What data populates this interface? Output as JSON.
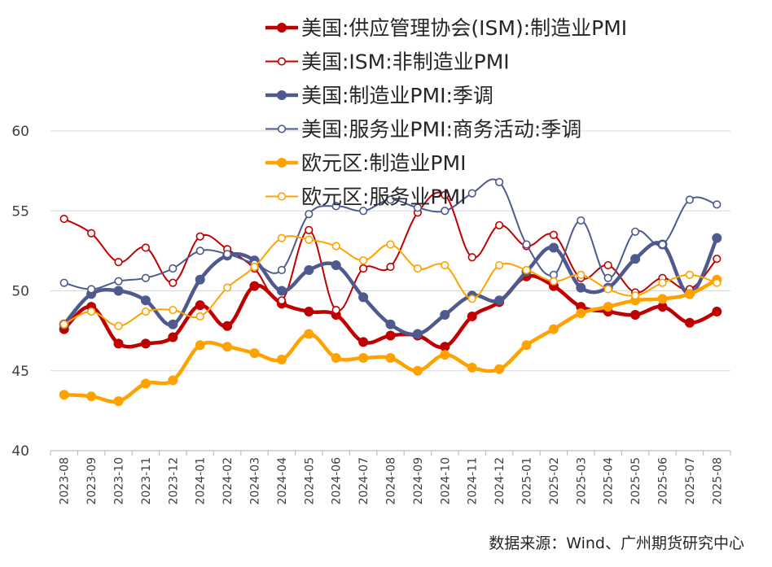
{
  "chart_data": {
    "type": "line",
    "categories": [
      "2023-08",
      "2023-09",
      "2023-10",
      "2023-11",
      "2023-12",
      "2024-01",
      "2024-02",
      "2024-03",
      "2024-04",
      "2024-05",
      "2024-06",
      "2024-07",
      "2024-08",
      "2024-09",
      "2024-10",
      "2024-11",
      "2024-12",
      "2025-01",
      "2025-02",
      "2025-03",
      "2025-04",
      "2025-05",
      "2025-06",
      "2025-07",
      "2025-08"
    ],
    "ylim": [
      40,
      60
    ],
    "yticks": [
      "40",
      "45",
      "50",
      "55",
      "60"
    ],
    "grid": true,
    "legend_position": "top",
    "series": [
      {
        "name": "美国:供应管理协会(ISM):制造业PMI",
        "color": "#c00000",
        "style": "thick-filled",
        "values": [
          47.6,
          49.0,
          46.7,
          46.7,
          47.1,
          49.1,
          47.8,
          50.3,
          49.2,
          48.7,
          48.5,
          46.8,
          47.2,
          47.2,
          46.5,
          48.4,
          49.3,
          50.9,
          50.3,
          49.0,
          48.7,
          48.5,
          49.0,
          48.0,
          48.7
        ]
      },
      {
        "name": "美国:ISM:非制造业PMI",
        "color": "#c00000",
        "style": "thin-hollow",
        "values": [
          54.5,
          53.6,
          51.8,
          52.7,
          50.5,
          53.4,
          52.6,
          51.4,
          49.4,
          53.8,
          48.8,
          51.4,
          51.5,
          54.9,
          56.0,
          52.1,
          54.1,
          52.8,
          53.5,
          50.8,
          51.6,
          49.9,
          50.8,
          50.1,
          52.0
        ]
      },
      {
        "name": "美国:制造业PMI:季调",
        "color": "#4e5a8e",
        "style": "thick-filled",
        "values": [
          47.9,
          49.8,
          50.0,
          49.4,
          47.9,
          50.7,
          52.2,
          51.9,
          50.0,
          51.3,
          51.6,
          49.6,
          47.9,
          47.3,
          48.5,
          49.7,
          49.4,
          51.2,
          52.7,
          50.2,
          50.2,
          52.0,
          52.9,
          49.8,
          53.3
        ]
      },
      {
        "name": "美国:服务业PMI:商务活动:季调",
        "color": "#4e5a8e",
        "style": "thin-hollow",
        "values": [
          50.5,
          50.1,
          50.6,
          50.8,
          51.4,
          52.5,
          52.3,
          51.7,
          51.3,
          54.8,
          55.3,
          55.0,
          55.7,
          55.2,
          55.0,
          56.1,
          56.8,
          52.9,
          51.0,
          54.4,
          50.8,
          53.7,
          52.9,
          55.7,
          55.4
        ]
      },
      {
        "name": "欧元区:制造业PMI",
        "color": "#ffa200",
        "style": "thick-filled",
        "values": [
          43.5,
          43.4,
          43.1,
          44.2,
          44.4,
          46.6,
          46.5,
          46.1,
          45.7,
          47.3,
          45.8,
          45.8,
          45.8,
          45.0,
          46.0,
          45.2,
          45.1,
          46.6,
          47.6,
          48.6,
          49.0,
          49.4,
          49.5,
          49.8,
          50.7
        ]
      },
      {
        "name": "欧元区:服务业PMI",
        "color": "#ffa200",
        "style": "thin-hollow",
        "values": [
          47.9,
          48.7,
          47.8,
          48.7,
          48.8,
          48.4,
          50.2,
          51.5,
          53.3,
          53.2,
          52.8,
          51.9,
          52.9,
          51.4,
          51.6,
          49.5,
          51.6,
          51.3,
          50.6,
          51.0,
          50.1,
          49.7,
          50.5,
          51.0,
          50.5
        ]
      }
    ]
  },
  "source_text": "数据来源：Wind、广州期货研究中心"
}
